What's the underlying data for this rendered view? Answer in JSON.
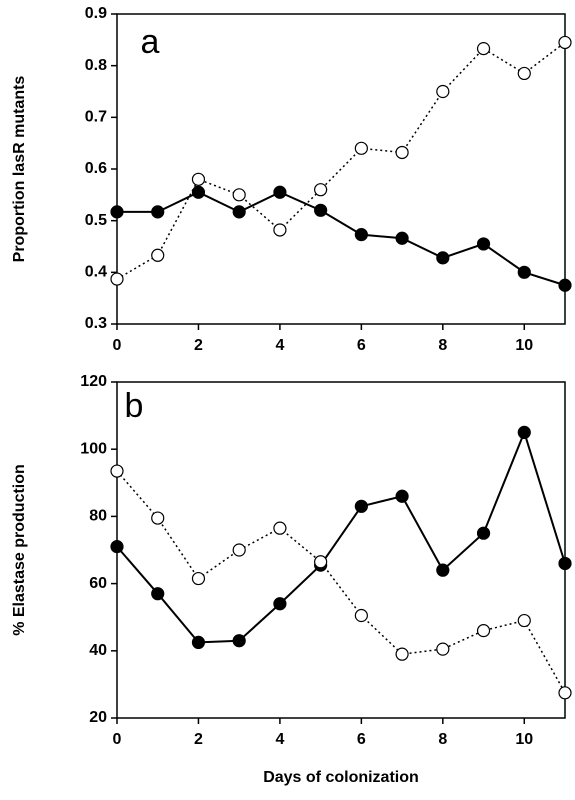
{
  "chart_data": [
    {
      "type": "line",
      "annotation": "a",
      "y_label": "Proportion lasR mutants",
      "x": [
        0,
        1,
        2,
        3,
        4,
        5,
        6,
        7,
        8,
        9,
        10,
        11
      ],
      "series": [
        {
          "color": "#000000",
          "marker": "filled",
          "linestyle": "solid",
          "values": [
            0.517,
            0.517,
            0.555,
            0.517,
            0.555,
            0.52,
            0.473,
            0.466,
            0.428,
            0.455,
            0.4,
            0.375
          ]
        },
        {
          "color": "#000000",
          "marker": "open",
          "linestyle": "dotted",
          "values": [
            0.387,
            0.433,
            0.58,
            0.55,
            0.482,
            0.56,
            0.64,
            0.632,
            0.75,
            0.833,
            0.785,
            0.845
          ]
        }
      ],
      "xlim": [
        0,
        11
      ],
      "xticks": [
        0,
        2,
        4,
        6,
        8,
        10
      ],
      "ylim": [
        0.3,
        0.9
      ],
      "yticks": [
        0.3,
        0.4,
        0.5,
        0.6,
        0.7,
        0.8,
        0.9
      ]
    },
    {
      "type": "line",
      "annotation": "b",
      "y_label": "% Elastase production",
      "x_label": "Days of colonization",
      "x": [
        0,
        1,
        2,
        3,
        4,
        5,
        6,
        7,
        8,
        9,
        10,
        11
      ],
      "series": [
        {
          "color": "#000000",
          "marker": "filled",
          "linestyle": "solid",
          "values": [
            71,
            57,
            42.5,
            43,
            54,
            65.5,
            83,
            86,
            64,
            75,
            105,
            66
          ]
        },
        {
          "color": "#000000",
          "marker": "open",
          "linestyle": "dotted",
          "values": [
            93.5,
            79.5,
            61.5,
            70,
            76.5,
            66.5,
            50.5,
            39,
            40.5,
            46,
            49,
            27.5
          ]
        }
      ],
      "xlim": [
        0,
        11
      ],
      "xticks": [
        0,
        2,
        4,
        6,
        8,
        10
      ],
      "ylim": [
        20,
        120
      ],
      "yticks": [
        20,
        40,
        60,
        80,
        100,
        120
      ]
    }
  ]
}
